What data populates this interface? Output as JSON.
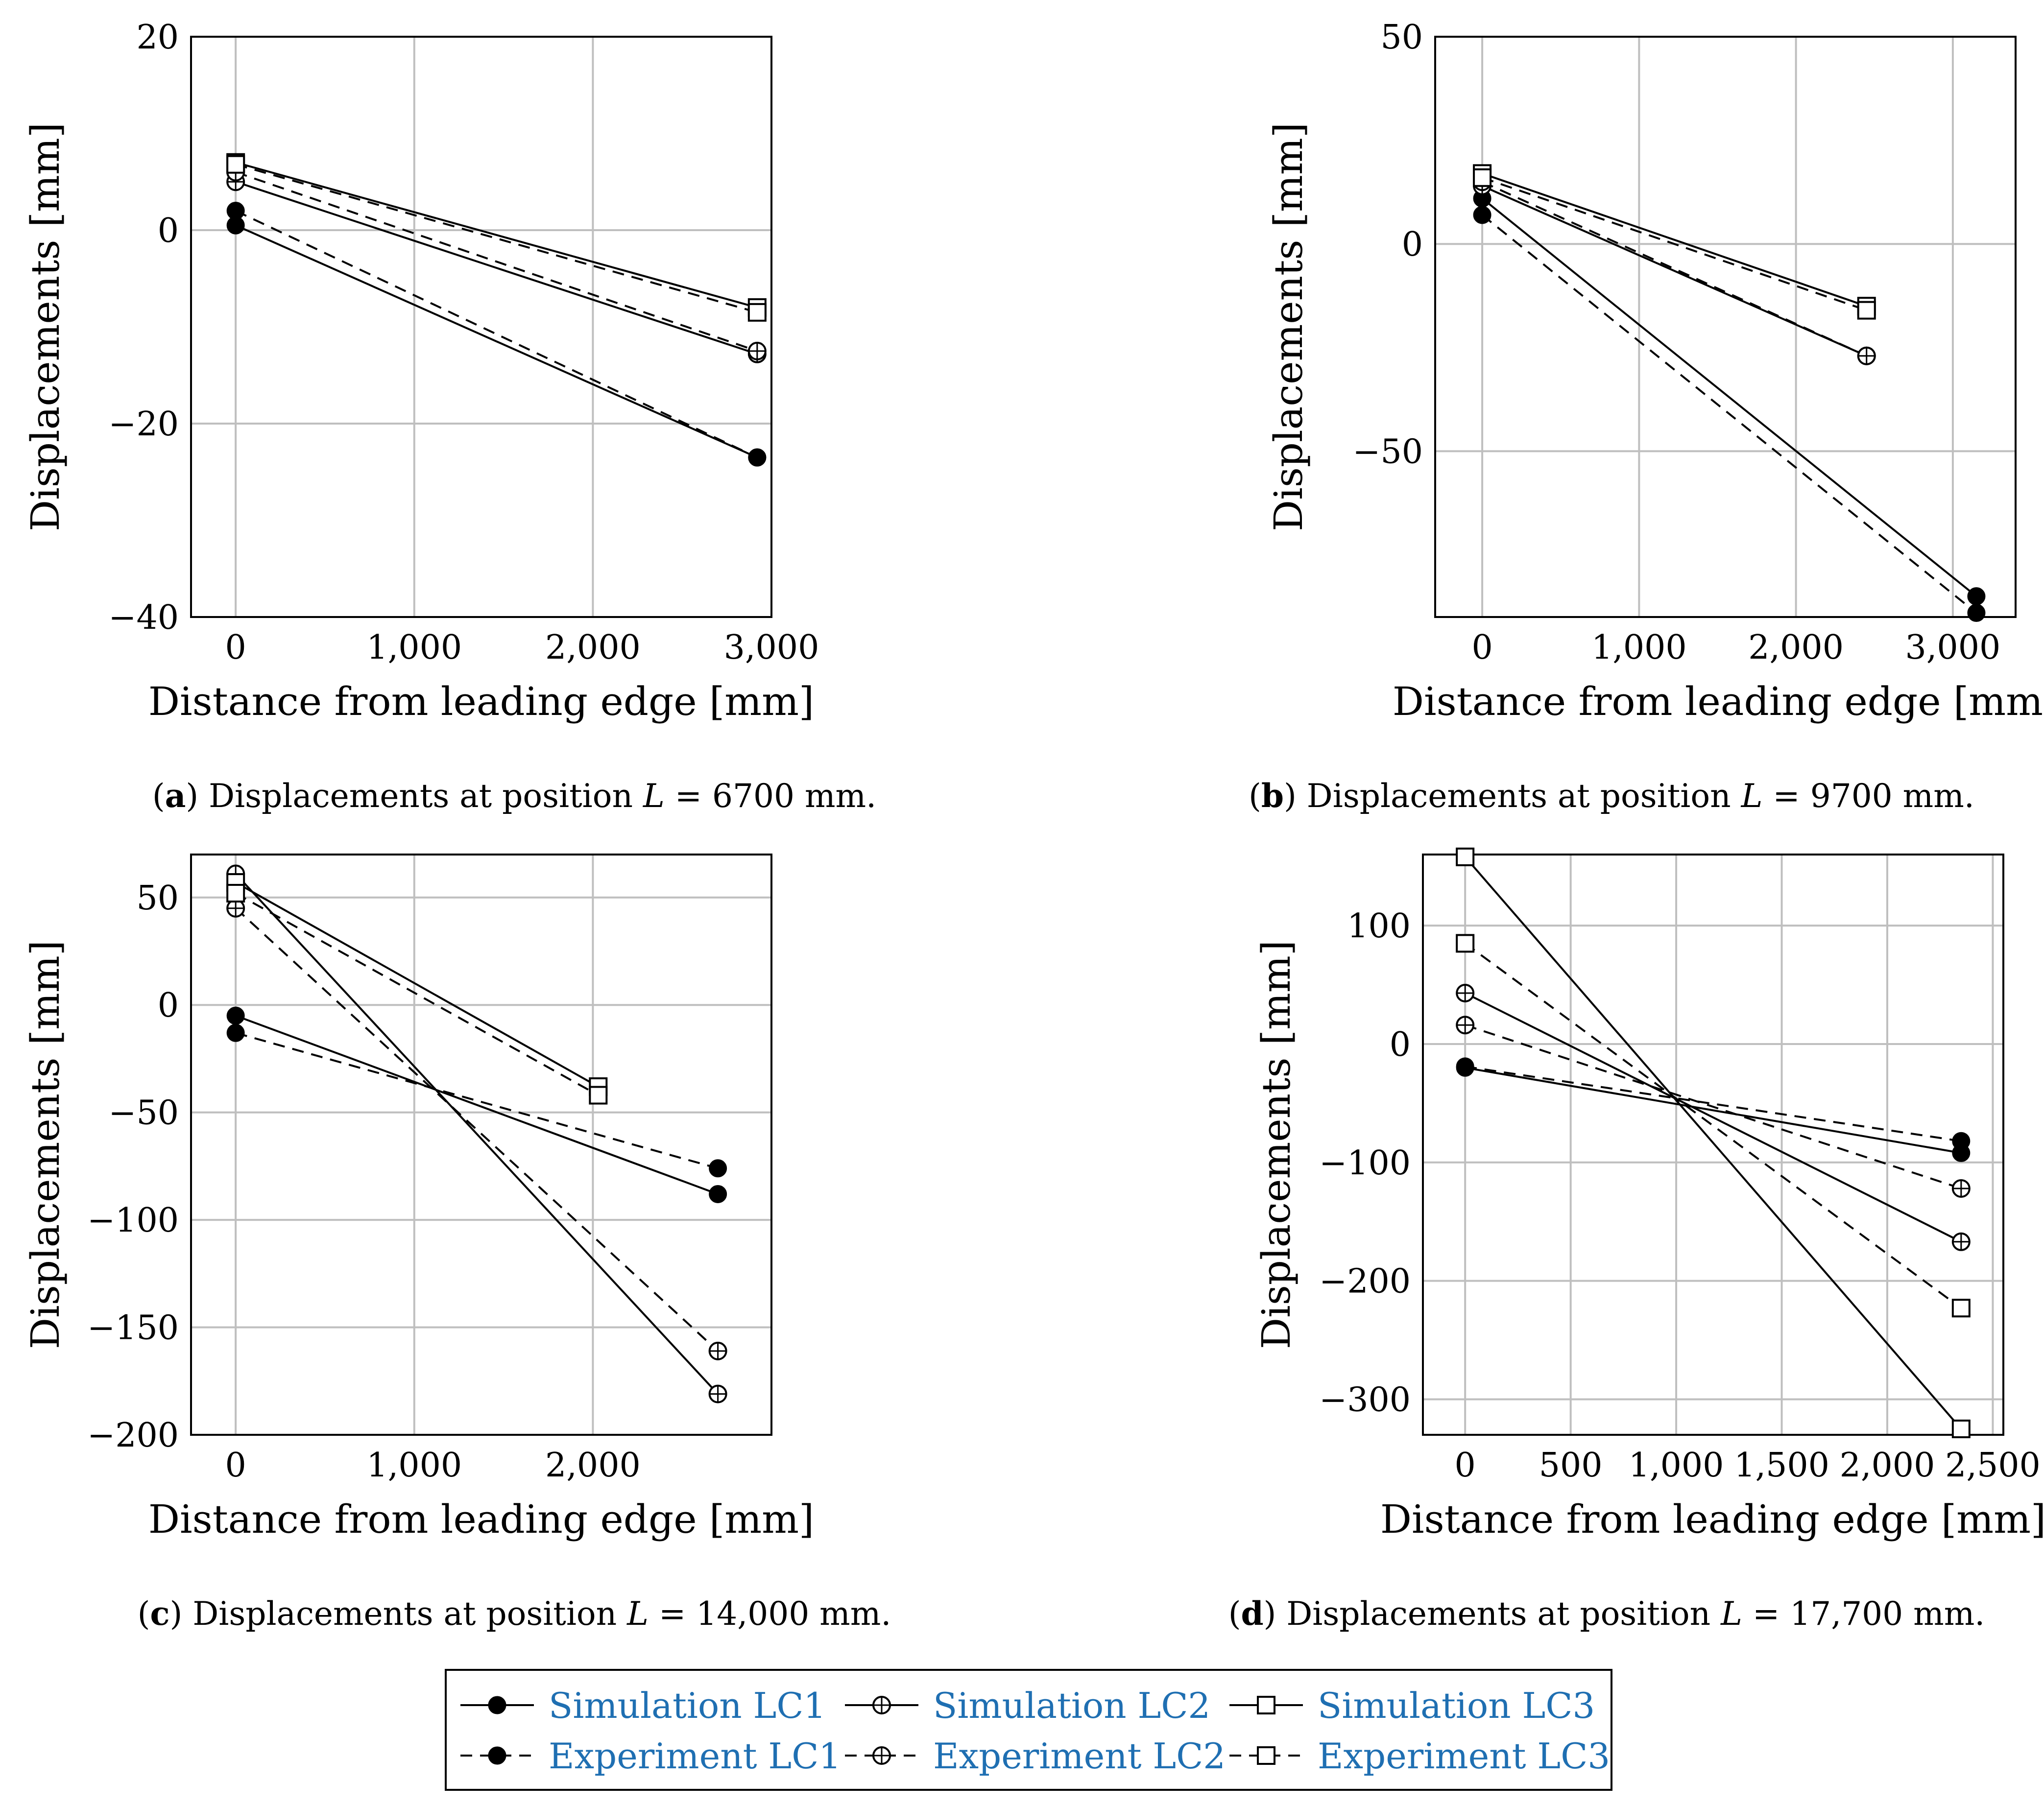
{
  "chart_data": [
    {
      "type": "line",
      "panel_letter": "a",
      "caption_prefix": "Displacements at position ",
      "caption_var": "L",
      "caption_value": " = 6700 mm.",
      "xlabel": "Distance from leading edge [mm]",
      "ylabel": "Displacements [mm]",
      "xlim": [
        -250,
        3000
      ],
      "ylim": [
        -40,
        20
      ],
      "xticks": [
        0,
        1000,
        2000,
        3000
      ],
      "xtick_labels": [
        "0",
        "1,000",
        "2,000",
        "3,000"
      ],
      "yticks": [
        -40,
        -20,
        0,
        20
      ],
      "ytick_labels": [
        "−40",
        "−20",
        "0",
        "20"
      ],
      "series": [
        {
          "name": "Simulation LC1",
          "x": [
            0,
            2920
          ],
          "y": [
            0.5,
            -23.5
          ]
        },
        {
          "name": "Simulation LC2",
          "x": [
            0,
            2920
          ],
          "y": [
            5,
            -12.8
          ]
        },
        {
          "name": "Simulation LC3",
          "x": [
            0,
            2920
          ],
          "y": [
            7,
            -8
          ]
        },
        {
          "name": "Experiment LC1",
          "x": [
            0,
            2920
          ],
          "y": [
            2,
            -23.5
          ]
        },
        {
          "name": "Experiment LC2",
          "x": [
            0,
            2920
          ],
          "y": [
            6,
            -12.5
          ]
        },
        {
          "name": "Experiment LC3",
          "x": [
            0,
            2920
          ],
          "y": [
            6.8,
            -8.5
          ]
        }
      ]
    },
    {
      "type": "line",
      "panel_letter": "b",
      "caption_prefix": "Displacements at position ",
      "caption_var": "L",
      "caption_value": " = 9700 mm.",
      "xlabel": "Distance from leading edge [mm]",
      "ylabel": "Displacements [mm]",
      "xlim": [
        -300,
        3400
      ],
      "ylim": [
        -90,
        50
      ],
      "xticks": [
        0,
        1000,
        2000,
        3000
      ],
      "xtick_labels": [
        "0",
        "1,000",
        "2,000",
        "3,000"
      ],
      "yticks": [
        -50,
        0,
        50
      ],
      "ytick_labels": [
        "−50",
        "0",
        "50"
      ],
      "series": [
        {
          "name": "Simulation LC1",
          "x": [
            0,
            3150
          ],
          "y": [
            11,
            -85
          ]
        },
        {
          "name": "Simulation LC2",
          "x": [
            0,
            2450
          ],
          "y": [
            14,
            -27
          ]
        },
        {
          "name": "Simulation LC3",
          "x": [
            0,
            2450
          ],
          "y": [
            17,
            -15
          ]
        },
        {
          "name": "Experiment LC1",
          "x": [
            0,
            3150
          ],
          "y": [
            7,
            -89
          ]
        },
        {
          "name": "Experiment LC2",
          "x": [
            0,
            2450
          ],
          "y": [
            15,
            -27
          ]
        },
        {
          "name": "Experiment LC3",
          "x": [
            0,
            2450
          ],
          "y": [
            16,
            -16
          ]
        }
      ]
    },
    {
      "type": "line",
      "panel_letter": "c",
      "caption_prefix": "Displacements at position ",
      "caption_var": "L",
      "caption_value": " = 14,000 mm.",
      "xlabel": "Distance from leading edge [mm]",
      "ylabel": "Displacements [mm]",
      "xlim": [
        -250,
        3000
      ],
      "ylim": [
        -200,
        70
      ],
      "xticks": [
        0,
        1000,
        2000
      ],
      "xtick_labels": [
        "0",
        "1,000",
        "2,000"
      ],
      "yticks": [
        -200,
        -150,
        -100,
        -50,
        0,
        50
      ],
      "ytick_labels": [
        "−200",
        "−150",
        "−100",
        "−50",
        "0",
        "50"
      ],
      "series": [
        {
          "name": "Simulation LC1",
          "x": [
            0,
            2700
          ],
          "y": [
            -5,
            -88
          ]
        },
        {
          "name": "Simulation LC2",
          "x": [
            0,
            2700
          ],
          "y": [
            61,
            -181
          ]
        },
        {
          "name": "Simulation LC3",
          "x": [
            0,
            2030
          ],
          "y": [
            57,
            -38
          ]
        },
        {
          "name": "Experiment LC1",
          "x": [
            0,
            2700
          ],
          "y": [
            -13,
            -76
          ]
        },
        {
          "name": "Experiment LC2",
          "x": [
            0,
            2700
          ],
          "y": [
            45,
            -161
          ]
        },
        {
          "name": "Experiment LC3",
          "x": [
            0,
            2030
          ],
          "y": [
            52,
            -42
          ]
        }
      ]
    },
    {
      "type": "line",
      "panel_letter": "d",
      "caption_prefix": "Displacements at position ",
      "caption_var": "L",
      "caption_value": " = 17,700 mm.",
      "xlabel": "Distance from leading edge [mm]",
      "ylabel": "Displacements [mm]",
      "xlim": [
        -200,
        2550
      ],
      "ylim": [
        -330,
        160
      ],
      "xticks": [
        0,
        500,
        1000,
        1500,
        2000,
        2500
      ],
      "xtick_labels": [
        "0",
        "500",
        "1,000",
        "1,500",
        "2,000",
        "2,500"
      ],
      "yticks": [
        -300,
        -200,
        -100,
        0,
        100
      ],
      "ytick_labels": [
        "−300",
        "−200",
        "−100",
        "0",
        "100"
      ],
      "series": [
        {
          "name": "Simulation LC1",
          "x": [
            0,
            2350
          ],
          "y": [
            -20,
            -92
          ]
        },
        {
          "name": "Simulation LC2",
          "x": [
            0,
            2350
          ],
          "y": [
            43,
            -167
          ]
        },
        {
          "name": "Simulation LC3",
          "x": [
            0,
            2350
          ],
          "y": [
            158,
            -325
          ]
        },
        {
          "name": "Experiment LC1",
          "x": [
            0,
            2350
          ],
          "y": [
            -19,
            -82
          ]
        },
        {
          "name": "Experiment LC2",
          "x": [
            0,
            2350
          ],
          "y": [
            16,
            -122
          ]
        },
        {
          "name": "Experiment LC3",
          "x": [
            0,
            2350
          ],
          "y": [
            85,
            -223
          ]
        }
      ]
    }
  ],
  "legend": {
    "items": [
      {
        "label": "Simulation LC1",
        "style": "solid",
        "marker": "filled-circle"
      },
      {
        "label": "Simulation LC2",
        "style": "solid",
        "marker": "circle-plus"
      },
      {
        "label": "Simulation LC3",
        "style": "solid",
        "marker": "open-square"
      },
      {
        "label": "Experiment LC1",
        "style": "dashed",
        "marker": "filled-circle"
      },
      {
        "label": "Experiment LC2",
        "style": "dashed",
        "marker": "circle-plus"
      },
      {
        "label": "Experiment LC3",
        "style": "dashed",
        "marker": "open-square"
      }
    ],
    "text_color": "#1f6fb2"
  }
}
